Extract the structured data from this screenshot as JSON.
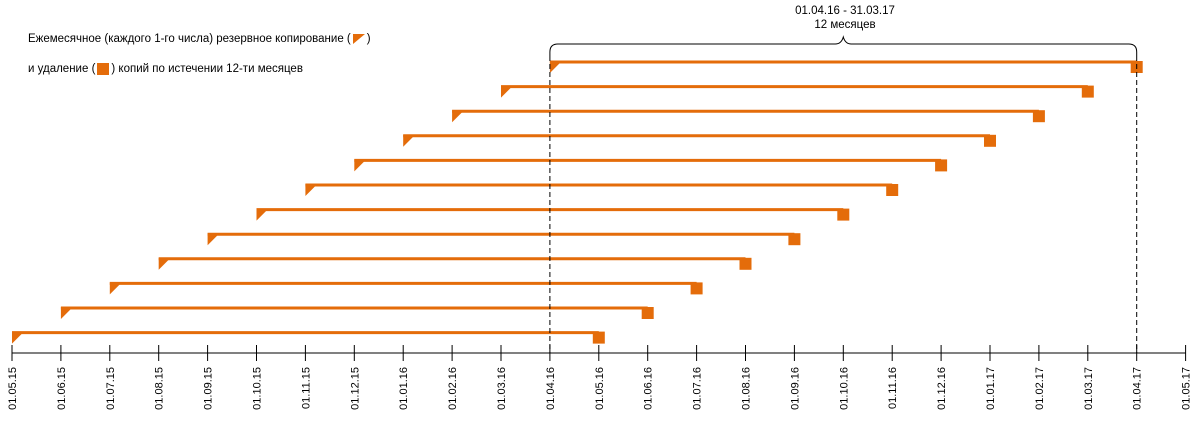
{
  "legend": {
    "line1_pre": "Ежемесячное (каждого 1-го числа) резервное копирование (",
    "line1_post": ")",
    "line2_pre": "и удаление (",
    "line2_post": ") копий по истечении 12-ти месяцев",
    "backup_icon": "orange-flag-triangle",
    "delete_icon": "orange-square"
  },
  "range": {
    "dates": "01.04.16 - 31.03.17",
    "duration": "12 месяцев"
  },
  "timeline": {
    "ticks": [
      "01.05.15",
      "01.06.15",
      "01.07.15",
      "01.08.15",
      "01.09.15",
      "01.10.15",
      "01.11.15",
      "01.12.15",
      "01.01.16",
      "01.02.16",
      "01.03.16",
      "01.04.16",
      "01.05.16",
      "01.06.16",
      "01.07.16",
      "01.08.16",
      "01.09.16",
      "01.10.16",
      "01.11.16",
      "01.12.16",
      "01.01.17",
      "01.02.17",
      "01.03.17",
      "01.04.17",
      "01.05.17"
    ],
    "backups": [
      {
        "start": "01.05.15",
        "end": "01.05.16"
      },
      {
        "start": "01.06.15",
        "end": "01.06.16"
      },
      {
        "start": "01.07.15",
        "end": "01.07.16"
      },
      {
        "start": "01.08.15",
        "end": "01.08.16"
      },
      {
        "start": "01.09.15",
        "end": "01.09.16"
      },
      {
        "start": "01.10.15",
        "end": "01.10.16"
      },
      {
        "start": "01.11.15",
        "end": "01.11.16"
      },
      {
        "start": "01.12.15",
        "end": "01.12.16"
      },
      {
        "start": "01.01.16",
        "end": "01.01.17"
      },
      {
        "start": "01.02.16",
        "end": "01.02.17"
      },
      {
        "start": "01.03.16",
        "end": "01.03.17"
      },
      {
        "start": "01.04.16",
        "end": "01.04.17"
      }
    ],
    "window_start": "01.04.16",
    "window_end": "01.04.17"
  },
  "colors": {
    "accent": "#E46C0A",
    "axis": "#000000"
  }
}
